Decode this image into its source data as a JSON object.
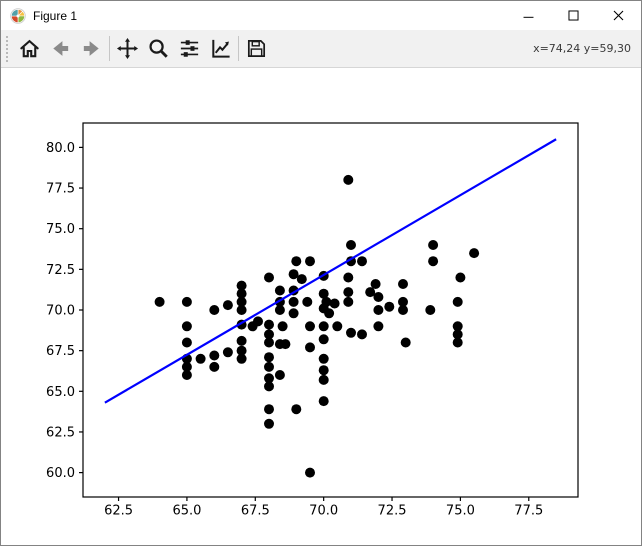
{
  "window": {
    "title": "Figure 1",
    "controls": [
      {
        "name": "minimize"
      },
      {
        "name": "maximize"
      },
      {
        "name": "close"
      }
    ]
  },
  "toolbar": {
    "buttons": [
      {
        "name": "home",
        "icon": "home-icon",
        "group": 1
      },
      {
        "name": "back",
        "icon": "back-arrow-icon",
        "group": 1
      },
      {
        "name": "forward",
        "icon": "forward-arrow-icon",
        "group": 1
      },
      {
        "name": "pan",
        "icon": "pan-arrows-icon",
        "group": 2
      },
      {
        "name": "zoom",
        "icon": "magnifier-icon",
        "group": 2
      },
      {
        "name": "configure-subplots",
        "icon": "sliders-icon",
        "group": 2
      },
      {
        "name": "edit-axes",
        "icon": "chart-line-icon",
        "group": 2
      },
      {
        "name": "save",
        "icon": "floppy-disk-icon",
        "group": 3
      }
    ],
    "readout": "x=74,24 y=59,30"
  },
  "chart_data": {
    "type": "scatter",
    "title": "",
    "xlabel": "",
    "ylabel": "",
    "xlim": [
      61.2,
      79.3
    ],
    "ylim": [
      58.5,
      81.5
    ],
    "x_ticks": [
      62.5,
      65.0,
      67.5,
      70.0,
      72.5,
      75.0,
      77.5
    ],
    "y_ticks": [
      60.0,
      62.5,
      65.0,
      67.5,
      70.0,
      72.5,
      75.0,
      77.5,
      80.0
    ],
    "grid": false,
    "legend": null,
    "marker_color": "#000000",
    "points": [
      [
        64,
        70.5
      ],
      [
        65,
        70.5
      ],
      [
        65,
        69
      ],
      [
        65,
        68
      ],
      [
        65,
        67
      ],
      [
        65,
        66.5
      ],
      [
        65,
        66
      ],
      [
        65.5,
        67
      ],
      [
        66,
        70
      ],
      [
        66,
        67.2
      ],
      [
        66,
        66.5
      ],
      [
        66.5,
        70.3
      ],
      [
        66.5,
        67.4
      ],
      [
        67,
        71.5
      ],
      [
        67,
        71
      ],
      [
        67,
        70.5
      ],
      [
        67,
        70
      ],
      [
        67,
        69.1
      ],
      [
        67,
        68.1
      ],
      [
        67,
        67.5
      ],
      [
        67,
        67
      ],
      [
        67.4,
        69
      ],
      [
        67.6,
        69.3
      ],
      [
        68,
        72
      ],
      [
        68,
        69.1
      ],
      [
        68,
        68.5
      ],
      [
        68,
        68
      ],
      [
        68,
        67.1
      ],
      [
        68,
        66.5
      ],
      [
        68,
        65.8
      ],
      [
        68,
        65.3
      ],
      [
        68,
        63.9
      ],
      [
        68,
        63
      ],
      [
        68.4,
        71.2
      ],
      [
        68.4,
        70.5
      ],
      [
        68.4,
        70
      ],
      [
        68.5,
        69
      ],
      [
        68.4,
        67.9
      ],
      [
        68.6,
        67.9
      ],
      [
        68.4,
        66
      ],
      [
        69,
        73
      ],
      [
        68.9,
        72.2
      ],
      [
        69.2,
        71.9
      ],
      [
        68.9,
        71.2
      ],
      [
        68.9,
        70.5
      ],
      [
        68.9,
        69.8
      ],
      [
        69,
        63.9
      ],
      [
        69.5,
        73
      ],
      [
        69.4,
        70.5
      ],
      [
        69.5,
        69
      ],
      [
        69.5,
        67.7
      ],
      [
        69.5,
        60
      ],
      [
        70,
        72.1
      ],
      [
        70,
        71
      ],
      [
        70,
        70.1
      ],
      [
        70.2,
        69.8
      ],
      [
        70,
        69
      ],
      [
        70,
        68.2
      ],
      [
        70,
        67
      ],
      [
        70,
        66.3
      ],
      [
        70,
        65.7
      ],
      [
        70,
        64.4
      ],
      [
        70.1,
        70.5
      ],
      [
        70.4,
        70.4
      ],
      [
        70.5,
        69
      ],
      [
        70.9,
        78
      ],
      [
        71,
        74
      ],
      [
        71,
        73
      ],
      [
        70.9,
        72
      ],
      [
        70.9,
        71.1
      ],
      [
        70.9,
        70.5
      ],
      [
        71,
        68.6
      ],
      [
        71.4,
        73
      ],
      [
        71.4,
        68.5
      ],
      [
        71.7,
        71.1
      ],
      [
        71.9,
        71.6
      ],
      [
        72,
        70.8
      ],
      [
        72,
        70
      ],
      [
        72,
        69
      ],
      [
        72.4,
        70.2
      ],
      [
        72.9,
        71.6
      ],
      [
        72.9,
        70.5
      ],
      [
        72.9,
        70
      ],
      [
        73,
        68
      ],
      [
        74,
        74
      ],
      [
        74,
        73
      ],
      [
        73.9,
        70
      ],
      [
        75,
        72
      ],
      [
        74.9,
        70.5
      ],
      [
        74.9,
        69
      ],
      [
        74.9,
        68.5
      ],
      [
        74.9,
        68
      ],
      [
        75.5,
        73.5
      ]
    ],
    "line": {
      "x1": 62.0,
      "y1": 64.3,
      "x2": 78.5,
      "y2": 80.5,
      "color": "#0000ff"
    }
  }
}
